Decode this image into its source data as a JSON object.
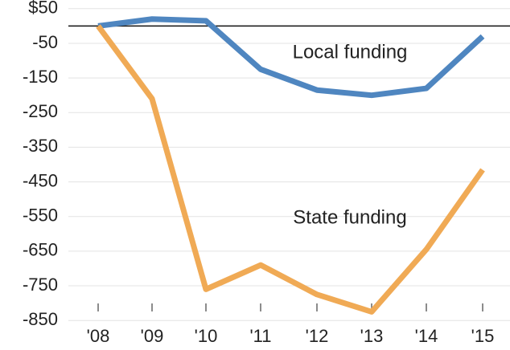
{
  "chart_data": {
    "type": "line",
    "categories": [
      "'08",
      "'09",
      "'10",
      "'11",
      "'12",
      "'13",
      "'14",
      "'15"
    ],
    "series": [
      {
        "name": "Local funding",
        "color": "#4f86c0",
        "values": [
          0,
          20,
          15,
          -125,
          -185,
          -200,
          -180,
          -30
        ]
      },
      {
        "name": "State funding",
        "color": "#f0aa55",
        "values": [
          0,
          -210,
          -760,
          -690,
          -775,
          -825,
          -645,
          -415
        ]
      }
    ],
    "ylim": [
      -875,
      75
    ],
    "yticks": [
      {
        "value": 50,
        "label": "$50"
      },
      -50,
      -150,
      -250,
      -350,
      -450,
      -550,
      -650,
      -750,
      -850
    ],
    "grid": true
  }
}
